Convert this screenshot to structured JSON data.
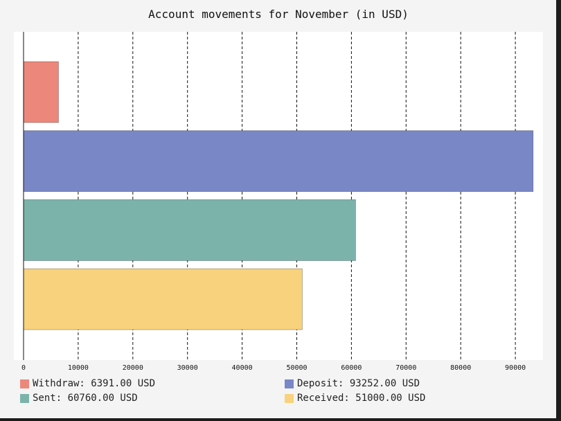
{
  "chart_data": {
    "type": "bar",
    "orientation": "horizontal",
    "title": "Account movements for November (in USD)",
    "xlabel": "",
    "ylabel": "",
    "xlim": [
      0,
      94000
    ],
    "x_ticks": [
      0,
      10000,
      20000,
      30000,
      40000,
      50000,
      60000,
      70000,
      80000,
      90000
    ],
    "grid": "vertical dashed",
    "legend_position": "bottom",
    "bars": [
      {
        "label": "Withdraw",
        "value": 6391.0,
        "color": "#ec877c",
        "legend": "Withdraw: 6391.00 USD"
      },
      {
        "label": "Deposit",
        "value": 93252.0,
        "color": "#7987c7",
        "legend": "Deposit: 93252.00 USD"
      },
      {
        "label": "Sent",
        "value": 60760.0,
        "color": "#7bb3ab",
        "legend": "Sent: 60760.00 USD"
      },
      {
        "label": "Received",
        "value": 51000.0,
        "color": "#f8d27c",
        "legend": "Received: 51000.00 USD"
      }
    ]
  }
}
